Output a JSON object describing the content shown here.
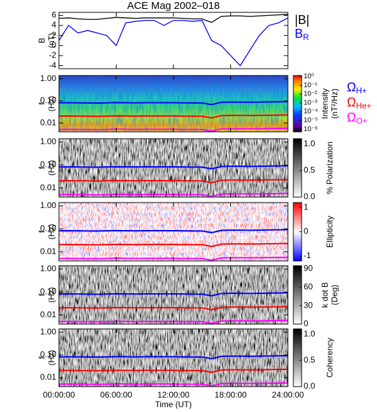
{
  "chart_data": [
    {
      "type": "line",
      "title": "ACE Mag 2002–018",
      "ylabel": [
        "B",
        "(nT)"
      ],
      "ylim": [
        -4.6,
        6.6
      ],
      "yticks": [
        -4,
        -2,
        0,
        2,
        4,
        6
      ],
      "x": [
        0,
        1,
        2,
        3,
        4,
        5,
        6,
        7,
        8,
        9,
        10,
        11,
        12,
        13,
        14,
        15,
        16,
        17,
        18,
        19,
        20,
        21,
        22,
        23,
        24
      ],
      "series": [
        {
          "name": "|B|",
          "color": "#000000",
          "values": [
            5.4,
            5.5,
            5.3,
            5.2,
            5.2,
            5.4,
            5.6,
            5.5,
            5.4,
            5.5,
            5.5,
            5.5,
            5.5,
            5.4,
            5.3,
            5.3,
            4.6,
            5.8,
            5.9,
            5.9,
            5.8,
            5.9,
            6.0,
            6.1,
            6.2
          ]
        },
        {
          "name": "BR",
          "color": "#0000ff",
          "values": [
            1,
            4,
            2.5,
            3,
            2.5,
            2,
            0,
            4.5,
            4.8,
            5,
            5,
            4,
            5,
            5,
            4.8,
            5,
            1,
            0,
            -2,
            -4,
            -1,
            2,
            4,
            4.5,
            5.5
          ]
        }
      ]
    },
    {
      "type": "spectrogram",
      "ylabel": [
        "f",
        "(Hz)"
      ],
      "log": true,
      "ylim": [
        0.004,
        1.4
      ],
      "yticks": [
        0.01,
        {
          "value": 0.1,
          "label": "0.10"
        },
        {
          "value": 1,
          "label": "1.00"
        }
      ],
      "colormap": "rainbow",
      "colorbar": {
        "label": [
          "Intensity",
          "(nT²/Hz)"
        ],
        "log": true,
        "lim": [
          5e-07,
          1.3
        ],
        "ticks": [
          {
            "value": 1,
            "label": "10⁰"
          },
          {
            "value": 0.1,
            "label": "10⁻¹"
          },
          {
            "value": 0.01,
            "label": "10⁻²"
          },
          {
            "value": 0.001,
            "label": "10⁻³"
          },
          {
            "value": 0.0001,
            "label": "10⁻⁴"
          },
          {
            "value": 1e-05,
            "label": "10⁻⁵"
          },
          {
            "value": 1e-06,
            "label": "10⁻⁶"
          }
        ]
      },
      "x": [
        0,
        1,
        2,
        3,
        4,
        5,
        6,
        7,
        8,
        9,
        10,
        11,
        12,
        13,
        14,
        15,
        16,
        17,
        18,
        19,
        20,
        21,
        22,
        23,
        24
      ],
      "series": [
        {
          "name": "ΩH+",
          "color": "#0000ff",
          "values": [
            0.082,
            0.083,
            0.082,
            0.081,
            0.08,
            0.082,
            0.084,
            0.083,
            0.082,
            0.083,
            0.083,
            0.083,
            0.083,
            0.082,
            0.081,
            0.081,
            0.068,
            0.086,
            0.088,
            0.088,
            0.087,
            0.088,
            0.09,
            0.091,
            0.092
          ]
        },
        {
          "name": "ΩHe+",
          "color": "#ff0000",
          "values": [
            0.0205,
            0.0208,
            0.0205,
            0.0203,
            0.02,
            0.0205,
            0.021,
            0.0208,
            0.0205,
            0.0208,
            0.0208,
            0.0208,
            0.0208,
            0.0205,
            0.0203,
            0.0203,
            0.017,
            0.0215,
            0.022,
            0.022,
            0.0218,
            0.022,
            0.0225,
            0.0228,
            0.023
          ]
        },
        {
          "name": "ΩO+",
          "color": "#ff00ff",
          "values": [
            0.0051,
            0.0052,
            0.0051,
            0.0051,
            0.005,
            0.0051,
            0.0053,
            0.0052,
            0.0051,
            0.0052,
            0.0052,
            0.0052,
            0.0052,
            0.0051,
            0.0051,
            0.0051,
            0.0043,
            0.0054,
            0.0055,
            0.0055,
            0.0055,
            0.0055,
            0.0056,
            0.0057,
            0.0058
          ]
        }
      ]
    },
    {
      "type": "spectrogram",
      "ylabel": [
        "f",
        "(Hz)"
      ],
      "log": true,
      "ylim": [
        0.004,
        1.4
      ],
      "yticks": [
        0.01,
        {
          "value": 0.1,
          "label": "0.10"
        },
        {
          "value": 1,
          "label": "1.00"
        }
      ],
      "colormap": "gray",
      "colorbar": {
        "label": [
          "% Polarization"
        ],
        "lim": [
          0,
          1.1
        ],
        "ticks": [
          {
            "value": 0,
            "label": "0.0"
          },
          {
            "value": 0.5,
            "label": "0.5"
          },
          {
            "value": 1,
            "label": "1.0"
          }
        ]
      }
    },
    {
      "type": "spectrogram",
      "ylabel": [
        "f",
        "(Hz)"
      ],
      "log": true,
      "ylim": [
        0.004,
        1.4
      ],
      "yticks": [
        0.01,
        {
          "value": 0.1,
          "label": "0.10"
        },
        {
          "value": 1,
          "label": "1.00"
        }
      ],
      "colormap": "bwr",
      "colorbar": {
        "label": [
          "Ellipticity"
        ],
        "lim": [
          -1.2,
          1.2
        ],
        "ticks": [
          -1,
          0,
          1
        ]
      }
    },
    {
      "type": "spectrogram",
      "ylabel": [
        "f",
        "(Hz)"
      ],
      "log": true,
      "ylim": [
        0.004,
        1.4
      ],
      "yticks": [
        0.01,
        {
          "value": 0.1,
          "label": "0.10"
        },
        {
          "value": 1,
          "label": "1.00"
        }
      ],
      "colormap": "gray",
      "colorbar": {
        "label": [
          "k dot B",
          "(Deg)"
        ],
        "lim": [
          0,
          95
        ],
        "ticks": [
          0,
          30,
          60,
          90
        ]
      }
    },
    {
      "type": "spectrogram",
      "ylabel": [
        "f",
        "(Hz)"
      ],
      "log": true,
      "ylim": [
        0.004,
        1.4
      ],
      "yticks": [
        0.01,
        {
          "value": 0.1,
          "label": "0.10"
        },
        {
          "value": 1,
          "label": "1.00"
        }
      ],
      "colormap": "gray",
      "colorbar": {
        "label": [
          "Coherency"
        ],
        "lim": [
          0,
          1.1
        ],
        "ticks": [
          {
            "value": 0,
            "label": "0.0"
          },
          {
            "value": 0.5,
            "label": "0.5"
          },
          {
            "value": 1,
            "label": "1.0"
          }
        ]
      },
      "xlabel": "Time (UT)",
      "xlim": [
        0,
        24
      ],
      "xticks": [
        {
          "value": 0,
          "label": "00:00:00"
        },
        {
          "value": 6,
          "label": "06:00:00"
        },
        {
          "value": 12,
          "label": "12:00:00"
        },
        {
          "value": 18,
          "label": "18:00:00"
        },
        {
          "value": 24,
          "label": "24:00:00"
        }
      ]
    }
  ]
}
